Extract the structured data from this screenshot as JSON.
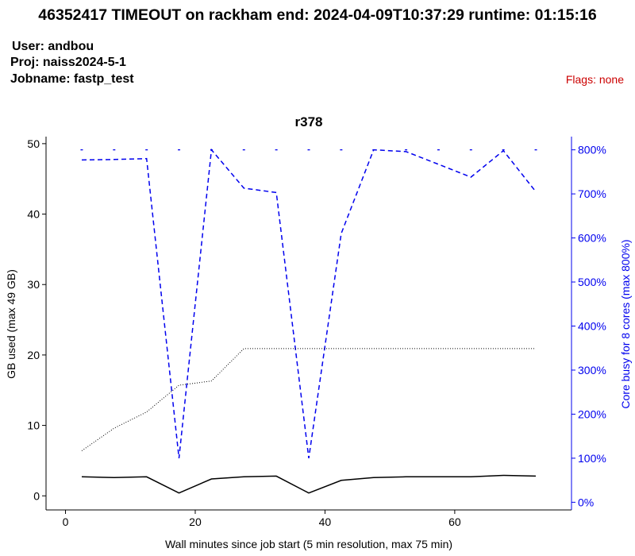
{
  "header": {
    "title": "46352417 TIMEOUT on rackham  end: 2024-04-09T10:37:29  runtime: 01:15:16",
    "user": "User: andbou",
    "proj": "Proj: naiss2024-5-1",
    "jobname": "Jobname: fastp_test",
    "flags": "Flags: none"
  },
  "colors": {
    "flags": "#cc0000",
    "cpu": "#0000ee",
    "memory": "#000000",
    "mem_max": "#000000"
  },
  "chart_data": {
    "type": "line",
    "title": "r378",
    "xlabel": "Wall minutes since job start (5 min resolution, max 75 min)",
    "ylabel_left": "GB used (max 49 GB)",
    "ylabel_right": "Core busy for 8 cores (max 800%)",
    "xlim": [
      -3,
      78
    ],
    "ylim_left": [
      -2,
      51
    ],
    "ylim_right": [
      -17.4,
      830
    ],
    "x_ticks": [
      0,
      20,
      40,
      60
    ],
    "x_tick_labels": [
      "0",
      "20",
      "40",
      "60"
    ],
    "y_left_ticks": [
      0,
      10,
      20,
      30,
      40,
      50
    ],
    "y_left_tick_labels": [
      "0",
      "10",
      "20",
      "30",
      "40",
      "50"
    ],
    "y_right_ticks": [
      0,
      100,
      200,
      300,
      400,
      500,
      600,
      700,
      800
    ],
    "y_right_tick_labels": [
      "0%",
      "100%",
      "200%",
      "300%",
      "400%",
      "500%",
      "600%",
      "700%",
      "800%"
    ],
    "grid": false,
    "series": [
      {
        "axis": "right",
        "style": "dashed",
        "color": "#0000ee",
        "x": [
          2.5,
          7.5,
          12.5,
          17.5,
          22.5,
          27.5,
          32.5,
          37.5,
          42.5,
          47.5,
          52.5,
          57.5,
          62.5,
          67.5,
          72.5
        ],
        "values": [
          777,
          778,
          780,
          100,
          800,
          713,
          703,
          100,
          610,
          800,
          796,
          767,
          738,
          798,
          705
        ]
      },
      {
        "axis": "left",
        "style": "solid",
        "color": "#000000",
        "x": [
          2.5,
          7.5,
          12.5,
          17.5,
          22.5,
          27.5,
          32.5,
          37.5,
          42.5,
          47.5,
          52.5,
          57.5,
          62.5,
          67.5,
          72.5
        ],
        "values": [
          2.7,
          2.6,
          2.7,
          0.4,
          2.4,
          2.7,
          2.8,
          0.4,
          2.2,
          2.6,
          2.7,
          2.7,
          2.7,
          2.9,
          2.8
        ]
      },
      {
        "axis": "left",
        "style": "dotted",
        "color": "#000000",
        "x": [
          2.5,
          7.5,
          12.5,
          17.5,
          22.5,
          27.5,
          32.5,
          37.5,
          42.5,
          47.5,
          52.5,
          57.5,
          62.5,
          67.5,
          72.5
        ],
        "values": [
          6.4,
          9.6,
          11.9,
          15.7,
          16.3,
          20.9,
          20.9,
          20.9,
          20.9,
          20.9,
          20.9,
          20.9,
          20.9,
          20.9,
          20.9
        ]
      },
      {
        "axis": "right",
        "style": "marks",
        "color": "#0000ee",
        "x": [
          2.5,
          7.5,
          12.5,
          17.5,
          22.5,
          27.5,
          32.5,
          37.5,
          42.5,
          47.5,
          52.5,
          57.5,
          62.5,
          67.5,
          72.5
        ],
        "values": [
          800,
          800,
          800,
          800,
          800,
          800,
          800,
          800,
          800,
          800,
          800,
          800,
          800,
          800,
          800
        ]
      }
    ]
  }
}
